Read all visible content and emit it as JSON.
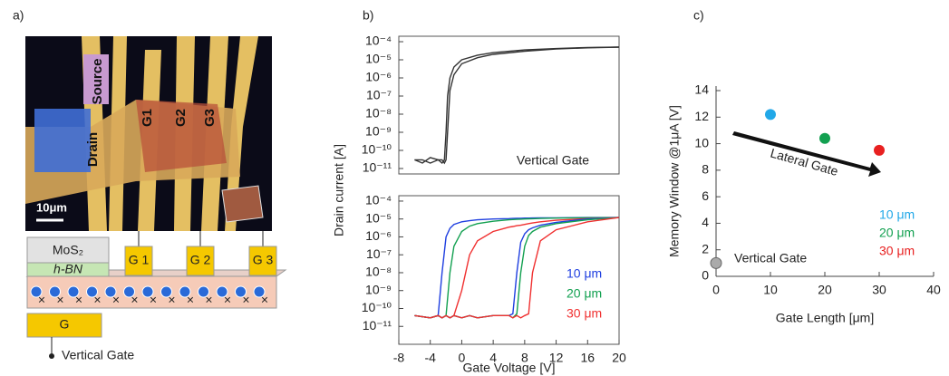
{
  "panel_labels": [
    "a)",
    "b)",
    "c)"
  ],
  "micrograph": {
    "source": "Source",
    "drain": "Drain",
    "gates": [
      "G1",
      "G2",
      "G3"
    ],
    "scale_bar": "10μm"
  },
  "schematic": {
    "channel": "MoS₂",
    "dielectric": "h-BN",
    "top_gates": [
      "G 1",
      "G 2",
      "G 3"
    ],
    "bottom_gate": "G",
    "bottom_gate_label": "Vertical Gate"
  },
  "chart_data": [
    {
      "type": "line",
      "ylabel": "Drain current [A]",
      "annotation": "Vertical Gate",
      "log_y": true,
      "xlim": [
        -8,
        20
      ],
      "ylim": [
        5e-12,
        0.0002
      ],
      "yticks": [
        {
          "value": 0.0001,
          "label": "10⁻⁴"
        },
        {
          "value": 1e-05,
          "label": "10⁻⁵"
        },
        {
          "value": 1e-06,
          "label": "10⁻⁶"
        },
        {
          "value": 1e-07,
          "label": "10⁻⁷"
        },
        {
          "value": 1e-08,
          "label": "10⁻⁸"
        },
        {
          "value": 1e-09,
          "label": "10⁻⁹"
        },
        {
          "value": 1e-10,
          "label": "10⁻¹⁰"
        },
        {
          "value": 1e-11,
          "label": "10⁻¹¹"
        }
      ],
      "x": [
        -6,
        -5,
        -4,
        -3,
        -2.5,
        -2.2,
        -2,
        -1.8,
        -1.5,
        -1,
        0,
        2,
        4,
        8,
        12,
        16,
        20
      ],
      "series": [
        {
          "color": "#333333",
          "values": [
            3e-11,
            2e-11,
            4e-11,
            3e-11,
            2e-11,
            3e-11,
            1e-09,
            1e-07,
            1e-06,
            4e-06,
            1e-05,
            1.8e-05,
            2.5e-05,
            3.5e-05,
            4.2e-05,
            4.8e-05,
            5e-05
          ]
        },
        {
          "color": "#333333",
          "values": [
            3e-11,
            3e-11,
            2e-11,
            3e-11,
            3e-11,
            2e-11,
            3e-11,
            1e-09,
            2e-07,
            1.5e-06,
            6e-06,
            1.3e-05,
            2e-05,
            3e-05,
            4e-05,
            4.6e-05,
            5e-05
          ]
        }
      ]
    },
    {
      "type": "line",
      "xlabel": "Gate Voltage [V]",
      "log_y": true,
      "xlim": [
        -8,
        20
      ],
      "xticks": [
        -8,
        -4,
        0,
        4,
        8,
        12,
        16,
        20
      ],
      "ylim": [
        1e-12,
        0.0002
      ],
      "yticks": [
        {
          "value": 0.0001,
          "label": "10⁻⁴"
        },
        {
          "value": 1e-05,
          "label": "10⁻⁵"
        },
        {
          "value": 1e-06,
          "label": "10⁻⁶"
        },
        {
          "value": 1e-07,
          "label": "10⁻⁷"
        },
        {
          "value": 1e-08,
          "label": "10⁻⁸"
        },
        {
          "value": 1e-09,
          "label": "10⁻⁹"
        },
        {
          "value": 1e-10,
          "label": "10⁻¹⁰"
        },
        {
          "value": 1e-11,
          "label": "10⁻¹¹"
        }
      ],
      "x": [
        -6,
        -4,
        -3,
        -2.5,
        -2,
        -1.5,
        -1,
        0,
        1,
        2,
        4,
        6,
        6.5,
        7,
        7.5,
        8,
        8.5,
        9,
        10,
        12,
        16,
        20
      ],
      "series": [
        {
          "name": "10 μm",
          "color": "#1f3fe0",
          "values": [
            4e-11,
            3e-11,
            4e-11,
            1e-08,
            1e-06,
            3e-06,
            5e-06,
            7e-06,
            8e-06,
            9e-06,
            1e-05,
            1.05e-05,
            1.07e-05,
            1.1e-05,
            1.1e-05,
            1.12e-05,
            1.13e-05,
            1.14e-05,
            1.15e-05,
            1.17e-05,
            1.2e-05,
            1.2e-05
          ]
        },
        {
          "name": "20 μm",
          "color": "#12a050",
          "values": [
            4e-11,
            3e-11,
            4e-11,
            3e-11,
            4e-11,
            1e-08,
            3e-07,
            2e-06,
            4e-06,
            5.5e-06,
            7.5e-06,
            9e-06,
            9.3e-06,
            9.6e-06,
            9.8e-06,
            1e-05,
            1.02e-05,
            1.04e-05,
            1.07e-05,
            1.12e-05,
            1.18e-05,
            1.2e-05
          ]
        },
        {
          "name": "30 μm",
          "color": "#f03030",
          "values": [
            4e-11,
            3e-11,
            4e-11,
            3e-11,
            4e-11,
            3e-11,
            4e-11,
            1e-09,
            1e-07,
            6e-07,
            2e-06,
            3.5e-06,
            3.8e-06,
            4.2e-06,
            4.5e-06,
            5e-06,
            5.5e-06,
            6e-06,
            7e-06,
            8.5e-06,
            1.05e-05,
            1.2e-05
          ]
        },
        {
          "color": "#1f3fe0",
          "values": [
            4e-11,
            3e-11,
            4e-11,
            3e-11,
            4e-11,
            3e-11,
            4e-11,
            3e-11,
            4e-11,
            3e-11,
            4e-11,
            4e-11,
            5e-11,
            1e-08,
            5e-07,
            1.5e-06,
            2.5e-06,
            3.2e-06,
            4.5e-06,
            6.5e-06,
            1e-05,
            1.2e-05
          ]
        },
        {
          "color": "#12a050",
          "values": [
            4e-11,
            3e-11,
            4e-11,
            3e-11,
            4e-11,
            3e-11,
            4e-11,
            3e-11,
            4e-11,
            3e-11,
            4e-11,
            4e-11,
            3e-11,
            5e-11,
            1e-08,
            3e-07,
            1.2e-06,
            2e-06,
            3.5e-06,
            5.5e-06,
            9e-06,
            1.2e-05
          ]
        },
        {
          "color": "#f03030",
          "values": [
            4e-11,
            3e-11,
            4e-11,
            3e-11,
            4e-11,
            3e-11,
            4e-11,
            3e-11,
            4e-11,
            3e-11,
            4e-11,
            4e-11,
            3e-11,
            4e-11,
            3e-11,
            4e-11,
            5e-11,
            1e-08,
            6e-07,
            2.5e-06,
            7e-06,
            1.2e-05
          ]
        }
      ]
    },
    {
      "type": "scatter",
      "xlabel": "Gate Length [μm]",
      "ylabel": "Memory Window @1μA [V]",
      "annotation": "Lateral Gate",
      "xlim": [
        0,
        40
      ],
      "xticks": [
        0,
        10,
        20,
        30,
        40
      ],
      "ylim": [
        0,
        14
      ],
      "yticks": [
        0,
        2,
        4,
        6,
        8,
        10,
        12,
        14
      ],
      "series": [
        {
          "name": "10 μm",
          "color": "#22a8e8",
          "x": [
            10
          ],
          "values": [
            12.2
          ]
        },
        {
          "name": "20 μm",
          "color": "#12a050",
          "x": [
            20
          ],
          "values": [
            10.4
          ]
        },
        {
          "name": "30 μm",
          "color": "#e82020",
          "x": [
            30
          ],
          "values": [
            9.5
          ]
        },
        {
          "name": "Vertical Gate",
          "color": "#aaaaaa",
          "x": [
            0
          ],
          "values": [
            1
          ]
        }
      ]
    }
  ]
}
